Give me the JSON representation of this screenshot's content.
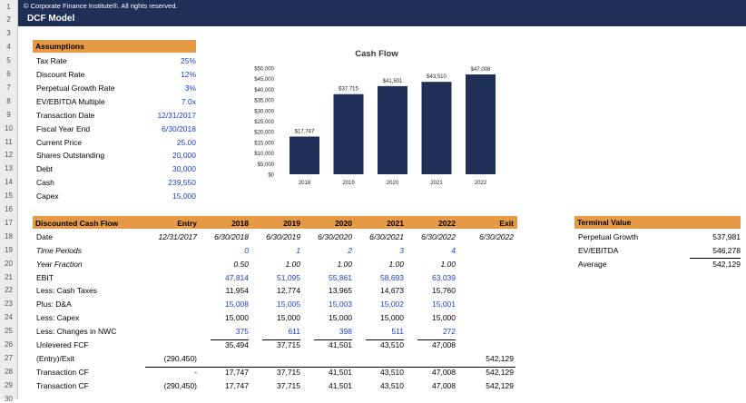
{
  "header": {
    "copyright": "© Corporate Finance Institute®. All rights reserved.",
    "title": "DCF Model"
  },
  "row_numbers": [
    "1",
    "2",
    "3",
    "4",
    "5",
    "6",
    "7",
    "8",
    "9",
    "10",
    "11",
    "12",
    "13",
    "14",
    "15",
    "16",
    "17",
    "18",
    "19",
    "20",
    "21",
    "22",
    "23",
    "24",
    "25",
    "26",
    "27",
    "28",
    "29",
    "30"
  ],
  "assumptions": {
    "title": "Assumptions",
    "items": [
      {
        "label": "Tax Rate",
        "value": "25%"
      },
      {
        "label": "Discount Rate",
        "value": "12%"
      },
      {
        "label": "Perpetual Growth Rate",
        "value": "3%"
      },
      {
        "label": "EV/EBITDA Multiple",
        "value": "7.0x"
      },
      {
        "label": "Transaction Date",
        "value": "12/31/2017"
      },
      {
        "label": "Fiscal Year End",
        "value": "6/30/2018"
      },
      {
        "label": "Current Price",
        "value": "25.00"
      },
      {
        "label": "Shares Outstanding",
        "value": "20,000"
      },
      {
        "label": "Debt",
        "value": "30,000"
      },
      {
        "label": "Cash",
        "value": "239,550"
      },
      {
        "label": "Capex",
        "value": "15,000"
      }
    ]
  },
  "chart_data": {
    "type": "bar",
    "title": "Cash Flow",
    "categories": [
      "2018",
      "2019",
      "2020",
      "2021",
      "2022"
    ],
    "values": [
      17747,
      37715,
      41501,
      43510,
      47008
    ],
    "data_labels": [
      "$17,747",
      "$37,715",
      "$41,501",
      "$43,510",
      "$47,008"
    ],
    "y_ticks": [
      "$50,000",
      "$45,000",
      "$40,000",
      "$35,000",
      "$30,000",
      "$25,000",
      "$20,000",
      "$15,000",
      "$10,000",
      "$5,000",
      "$0"
    ],
    "ylim": [
      0,
      50000
    ],
    "bar_color": "#1f2f55",
    "grid": false
  },
  "dcf": {
    "title": "Discounted Cash Flow",
    "columns": [
      "Entry",
      "2018",
      "2019",
      "2020",
      "2021",
      "2022",
      "Exit"
    ],
    "rows": [
      {
        "label": "Date",
        "cells": [
          "12/31/2017",
          "6/30/2018",
          "6/30/2019",
          "6/30/2020",
          "6/30/2021",
          "6/30/2022",
          "6/30/2022"
        ],
        "italic_values": true
      },
      {
        "label": "Time Periods",
        "cells": [
          "",
          "0",
          "1",
          "2",
          "3",
          "4",
          ""
        ],
        "italic_label": true,
        "italic_values": true
      },
      {
        "label": "Year Fraction",
        "cells": [
          "",
          "0.50",
          "1.00",
          "1.00",
          "1.00",
          "1.00",
          ""
        ],
        "italic_label": true,
        "italic_values": true
      },
      {
        "label": "EBIT",
        "cells": [
          "",
          "47,814",
          "51,095",
          "55,861",
          "58,693",
          "63,039",
          ""
        ]
      },
      {
        "label": "Less: Cash Taxes",
        "cells": [
          "",
          "11,954",
          "12,774",
          "13,965",
          "14,673",
          "15,760",
          ""
        ]
      },
      {
        "label": "Plus: D&A",
        "cells": [
          "",
          "15,008",
          "15,005",
          "15,003",
          "15,002",
          "15,001",
          ""
        ]
      },
      {
        "label": "Less: Capex",
        "cells": [
          "",
          "15,000",
          "15,000",
          "15,000",
          "15,000",
          "15,000",
          ""
        ]
      },
      {
        "label": "Less: Changes in NWC",
        "cells": [
          "",
          "375",
          "611",
          "398",
          "511",
          "272",
          ""
        ]
      },
      {
        "label": "Unlevered FCF",
        "cells": [
          "",
          "35,494",
          "37,715",
          "41,501",
          "43,510",
          "47,008",
          ""
        ]
      },
      {
        "label": "(Entry)/Exit",
        "cells": [
          "(290,450)",
          "",
          "",
          "",
          "",
          "",
          "542,129"
        ]
      },
      {
        "label": "Transaction CF",
        "cells": [
          "-",
          "17,747",
          "37,715",
          "41,501",
          "43,510",
          "47,008",
          "542,129"
        ]
      },
      {
        "label": "Transaction CF",
        "cells": [
          "(290,450)",
          "17,747",
          "37,715",
          "41,501",
          "43,510",
          "47,008",
          "542,129"
        ]
      }
    ]
  },
  "terminal": {
    "title": "Terminal Value",
    "items": [
      {
        "label": "Perpetual Growth",
        "value": "537,981"
      },
      {
        "label": "EV/EBITDA",
        "value": "546,278"
      },
      {
        "label": "Average",
        "value": "542,129"
      }
    ]
  }
}
